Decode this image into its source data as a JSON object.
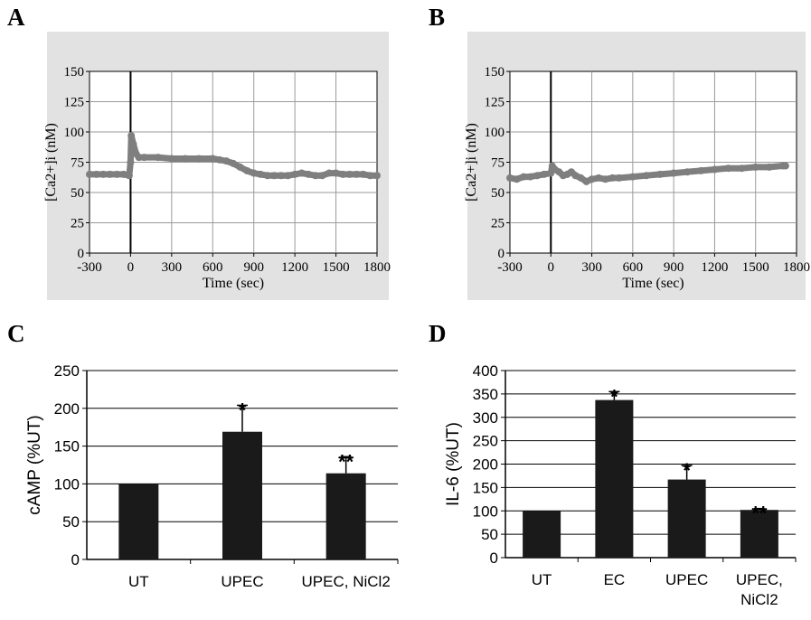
{
  "panel_labels": [
    "A",
    "B",
    "C",
    "D"
  ],
  "chart_data": [
    {
      "panel": "A",
      "type": "scatter",
      "xlabel": "Time (sec)",
      "ylabel": "[Ca2+]i (nM)",
      "xlim": [
        -300,
        1800
      ],
      "ylim": [
        0,
        150
      ],
      "xticks": [
        -300,
        0,
        300,
        600,
        900,
        1200,
        1500,
        1800
      ],
      "yticks": [
        0,
        25,
        50,
        75,
        100,
        125,
        150
      ],
      "grid": true,
      "background_color": "#e2e2e2",
      "marker_color": "#7f7f7f",
      "stimulus_x": 0,
      "points": [
        [
          -300,
          65
        ],
        [
          -250,
          65
        ],
        [
          -200,
          65
        ],
        [
          -150,
          65
        ],
        [
          -100,
          65
        ],
        [
          -50,
          65
        ],
        [
          -10,
          64
        ],
        [
          0,
          75
        ],
        [
          5,
          97
        ],
        [
          20,
          90
        ],
        [
          40,
          82
        ],
        [
          60,
          79
        ],
        [
          100,
          79
        ],
        [
          200,
          79
        ],
        [
          300,
          78
        ],
        [
          400,
          78
        ],
        [
          500,
          78
        ],
        [
          600,
          78
        ],
        [
          650,
          77
        ],
        [
          700,
          76
        ],
        [
          750,
          74
        ],
        [
          800,
          71
        ],
        [
          850,
          68
        ],
        [
          900,
          66
        ],
        [
          950,
          65
        ],
        [
          1000,
          64
        ],
        [
          1050,
          64
        ],
        [
          1100,
          64
        ],
        [
          1150,
          64
        ],
        [
          1200,
          65
        ],
        [
          1250,
          66
        ],
        [
          1300,
          65
        ],
        [
          1350,
          64
        ],
        [
          1400,
          64
        ],
        [
          1450,
          66
        ],
        [
          1500,
          66
        ],
        [
          1550,
          65
        ],
        [
          1600,
          65
        ],
        [
          1650,
          65
        ],
        [
          1700,
          65
        ],
        [
          1750,
          64
        ],
        [
          1800,
          64
        ]
      ]
    },
    {
      "panel": "B",
      "type": "scatter",
      "xlabel": "Time (sec)",
      "ylabel": "[Ca2+]i (nM)",
      "xlim": [
        -300,
        1800
      ],
      "ylim": [
        0,
        150
      ],
      "xticks": [
        -300,
        0,
        300,
        600,
        900,
        1200,
        1500,
        1800
      ],
      "yticks": [
        0,
        25,
        50,
        75,
        100,
        125,
        150
      ],
      "grid": true,
      "background_color": "#e2e2e2",
      "marker_color": "#7f7f7f",
      "stimulus_x": 0,
      "points": [
        [
          -300,
          62
        ],
        [
          -250,
          61
        ],
        [
          -200,
          63
        ],
        [
          -150,
          63
        ],
        [
          -100,
          64
        ],
        [
          -50,
          65
        ],
        [
          0,
          66
        ],
        [
          10,
          72
        ],
        [
          30,
          69
        ],
        [
          60,
          67
        ],
        [
          90,
          64
        ],
        [
          120,
          65
        ],
        [
          150,
          67
        ],
        [
          180,
          64
        ],
        [
          220,
          62
        ],
        [
          260,
          59
        ],
        [
          300,
          61
        ],
        [
          350,
          62
        ],
        [
          400,
          61
        ],
        [
          450,
          62
        ],
        [
          500,
          62
        ],
        [
          600,
          63
        ],
        [
          700,
          64
        ],
        [
          800,
          65
        ],
        [
          900,
          66
        ],
        [
          1000,
          67
        ],
        [
          1100,
          68
        ],
        [
          1200,
          69
        ],
        [
          1300,
          70
        ],
        [
          1400,
          70
        ],
        [
          1500,
          71
        ],
        [
          1600,
          71
        ],
        [
          1700,
          72
        ],
        [
          1720,
          72
        ]
      ]
    },
    {
      "panel": "C",
      "type": "bar",
      "ylabel": "cAMP (%UT)",
      "categories": [
        [
          "UT"
        ],
        [
          "UPEC"
        ],
        [
          "UPEC, NiCl2"
        ]
      ],
      "values": [
        100,
        169,
        114
      ],
      "errors": [
        0,
        35,
        22
      ],
      "significance": [
        "",
        "*",
        "**"
      ],
      "ylim": [
        0,
        250
      ],
      "yticks": [
        0,
        50,
        100,
        150,
        200,
        250
      ],
      "grid": "horizontal",
      "bar_color": "#1a1a1a"
    },
    {
      "panel": "D",
      "type": "bar",
      "ylabel": "IL-6 (%UT)",
      "categories": [
        [
          "UT"
        ],
        [
          "EC"
        ],
        [
          "UPEC"
        ],
        [
          "UPEC,",
          "NiCl2"
        ]
      ],
      "values": [
        100,
        337,
        167,
        102
      ],
      "errors": [
        0,
        18,
        30,
        3
      ],
      "significance": [
        "",
        "*",
        "*",
        "**"
      ],
      "ylim": [
        0,
        400
      ],
      "yticks": [
        0,
        50,
        100,
        150,
        200,
        250,
        300,
        350,
        400
      ],
      "grid": "horizontal",
      "bar_color": "#1a1a1a"
    }
  ]
}
